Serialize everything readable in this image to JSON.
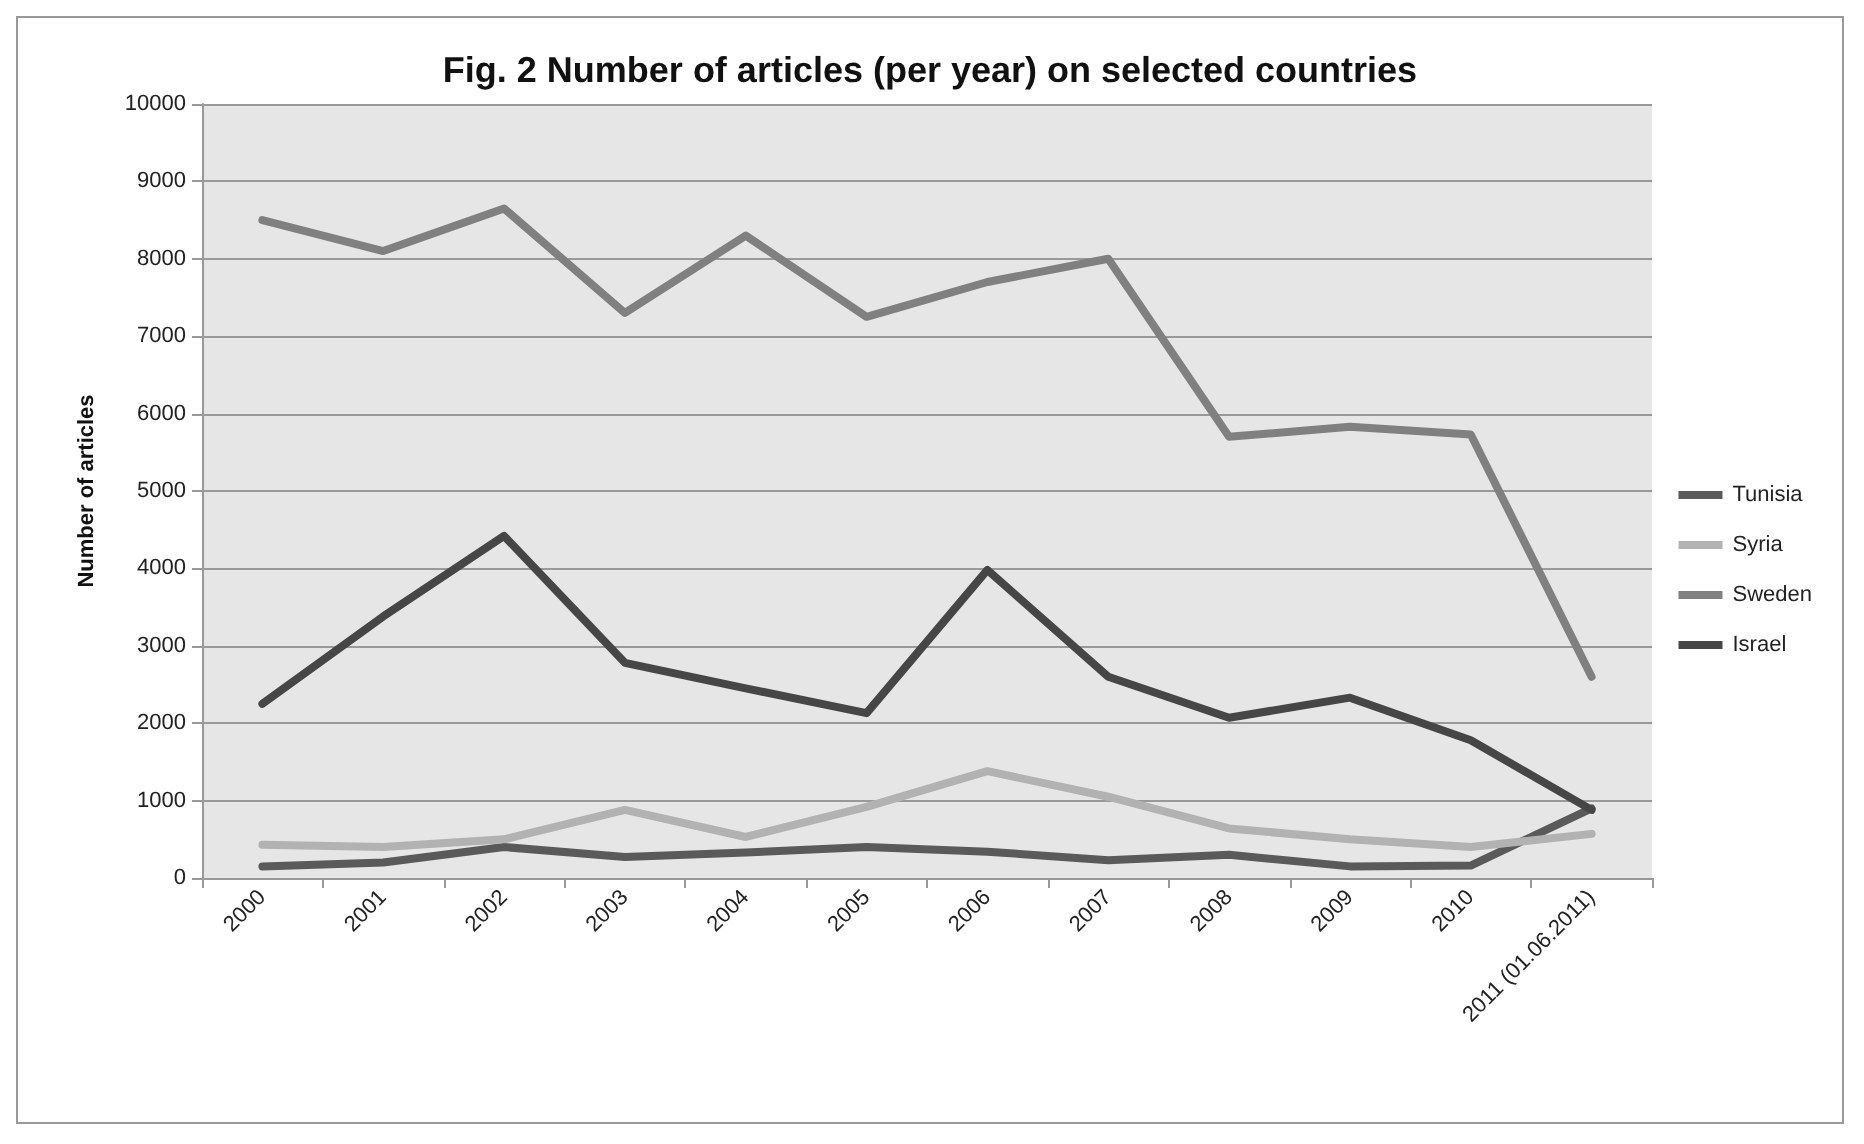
{
  "chart_data": {
    "type": "line",
    "title": "Fig. 2 Number of articles (per year) on selected countries",
    "ylabel": "Number of articles",
    "categories": [
      "2000",
      "2001",
      "2002",
      "2003",
      "2004",
      "2005",
      "2006",
      "2007",
      "2008",
      "2009",
      "2010",
      "2011 (01.06.2011)"
    ],
    "series": [
      {
        "name": "Tunisia",
        "color": "#5a5a5a",
        "values": [
          150,
          200,
          400,
          270,
          330,
          400,
          340,
          230,
          300,
          150,
          160,
          900
        ]
      },
      {
        "name": "Syria",
        "color": "#b2b2b2",
        "values": [
          430,
          400,
          500,
          880,
          530,
          920,
          1380,
          1050,
          640,
          500,
          400,
          570
        ]
      },
      {
        "name": "Sweden",
        "color": "#808080",
        "values": [
          8500,
          8100,
          8650,
          7300,
          8300,
          7250,
          7700,
          8000,
          5700,
          5830,
          5730,
          2600
        ]
      },
      {
        "name": "Israel",
        "color": "#464646",
        "values": [
          2250,
          3380,
          4420,
          2780,
          2450,
          2130,
          3980,
          2600,
          2070,
          2330,
          1780,
          880
        ]
      }
    ],
    "ylim": [
      0,
      10000
    ],
    "yticks": [
      0,
      1000,
      2000,
      3000,
      4000,
      5000,
      6000,
      7000,
      8000,
      9000,
      10000
    ],
    "grid": "y",
    "legend": "right",
    "marker": "none",
    "line_style": "solid"
  }
}
